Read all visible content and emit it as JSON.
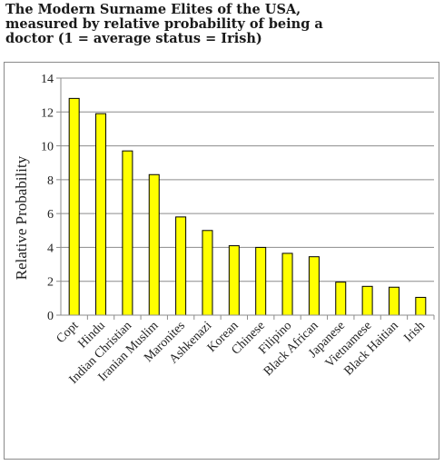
{
  "title_lines": [
    "The Modern Surname Elites of the USA,",
    "measured by relative probability of being a",
    "doctor (1 = average status = Irish)"
  ],
  "chart_data": {
    "type": "bar",
    "title": "The Modern Surname Elites of the USA, measured by relative probability of being a doctor (1 = average status = Irish)",
    "ylabel": "Relative Probability",
    "xlabel": "",
    "ylim": [
      0,
      14
    ],
    "yticks": [
      0,
      2,
      4,
      6,
      8,
      10,
      12,
      14
    ],
    "grid": true,
    "legend": "none",
    "bar_color": "#ffff00",
    "categories": [
      "Copt",
      "Hindu",
      "Indian Christian",
      "Iranian Muslim",
      "Maronites",
      "Ashkenazi",
      "Korean",
      "Chinese",
      "Filipino",
      "Black African",
      "Japanese",
      "Vietnamese",
      "Black Haitian",
      "Irish"
    ],
    "values": [
      12.8,
      11.9,
      9.7,
      8.3,
      5.8,
      5.0,
      4.1,
      4.0,
      3.65,
      3.45,
      1.95,
      1.7,
      1.65,
      1.05
    ]
  }
}
